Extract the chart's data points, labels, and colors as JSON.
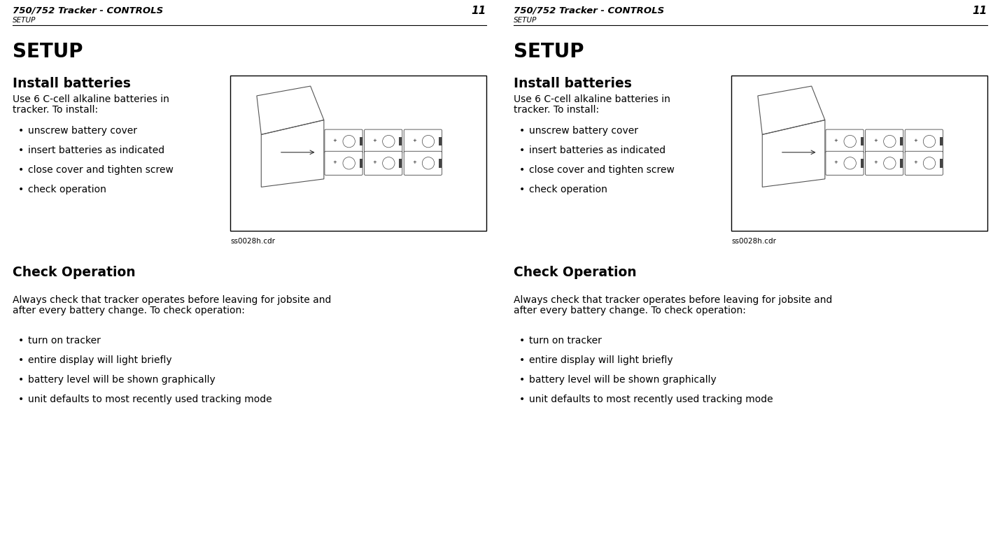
{
  "bg_color": "#ffffff",
  "text_color": "#000000",
  "header_title": "750/752 Tracker - CONTROLS",
  "header_page": "11",
  "header_sub": "SETUP",
  "section_title": "SETUP",
  "install_title": "Install batteries",
  "install_body1": "Use 6 C-cell alkaline batteries in",
  "install_body2": "tracker. To install:",
  "install_bullets": [
    "unscrew battery cover",
    "insert batteries as indicated",
    "close cover and tighten screw",
    "check operation"
  ],
  "check_title": "Check Operation",
  "check_body1": "Always check that tracker operates before leaving for jobsite and",
  "check_body2": "after every battery change. To check operation:",
  "check_bullets": [
    "turn on tracker",
    "entire display will light briefly",
    "battery level will be shown graphically",
    "unit defaults to most recently used tracking mode"
  ],
  "image_caption": "ss0028h.cdr"
}
